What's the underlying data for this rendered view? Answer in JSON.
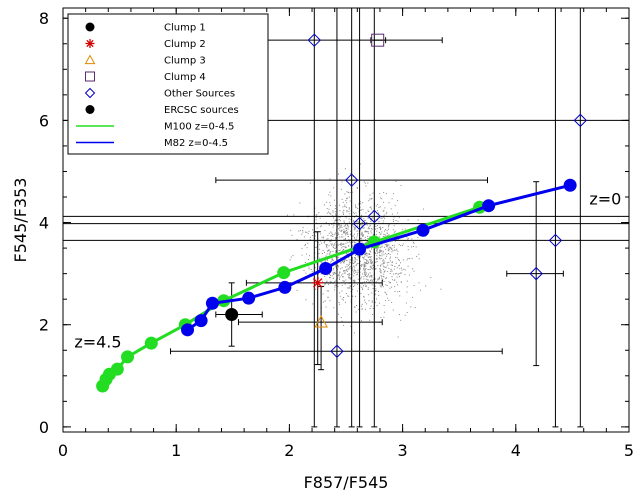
{
  "chart_data": {
    "type": "scatter",
    "xlabel": "F857/F545",
    "ylabel": "F545/F353",
    "xlim": [
      0,
      5
    ],
    "ylim": [
      -0.1,
      8.2
    ],
    "xticks": [
      "0",
      "1",
      "2",
      "3",
      "4",
      "5"
    ],
    "yticks": [
      "0",
      "2",
      "4",
      "6",
      "8"
    ],
    "x_tick_values": [
      0,
      1,
      2,
      3,
      4,
      5
    ],
    "y_tick_values": [
      0,
      2,
      4,
      6,
      8
    ],
    "annotations": [
      {
        "text": "z=0",
        "x": 4.65,
        "y": 4.35
      },
      {
        "text": "z=4.5",
        "x": 0.1,
        "y": 1.55
      }
    ],
    "legend": {
      "placement": "top-left",
      "entries": [
        {
          "label": "Clump 1",
          "marker": "filled-circle",
          "color": "#000000"
        },
        {
          "label": "Clump 2",
          "marker": "asterisk",
          "color": "#d40000"
        },
        {
          "label": "Clump 3",
          "marker": "open-triangle",
          "color": "#e08a00"
        },
        {
          "label": "Clump 4",
          "marker": "open-square",
          "color": "#5a2a6e"
        },
        {
          "label": "Other Sources",
          "marker": "open-diamond",
          "color": "#0000c8"
        },
        {
          "label": "ERCSC sources",
          "marker": "filled-circle",
          "color": "#000000"
        },
        {
          "label": "M100 z=0-4.5",
          "marker": "line",
          "color": "#22dd22"
        },
        {
          "label": "M82 z=0-4.5",
          "marker": "line",
          "color": "#0000ee"
        }
      ]
    },
    "series": [
      {
        "name": "M100 z=0-4.5",
        "style": "line+points",
        "color": "#22dd22",
        "points": [
          [
            0.35,
            0.8
          ],
          [
            0.38,
            0.93
          ],
          [
            0.41,
            1.03
          ],
          [
            0.48,
            1.13
          ],
          [
            0.57,
            1.37
          ],
          [
            0.78,
            1.64
          ],
          [
            1.08,
            2.0
          ],
          [
            1.42,
            2.47
          ],
          [
            1.95,
            3.02
          ],
          [
            2.75,
            3.62
          ],
          [
            3.68,
            4.3
          ]
        ]
      },
      {
        "name": "M82 z=0-4.5",
        "style": "line+points",
        "color": "#0000ee",
        "points": [
          [
            1.1,
            1.9
          ],
          [
            1.22,
            2.08
          ],
          [
            1.32,
            2.42
          ],
          [
            1.64,
            2.52
          ],
          [
            1.96,
            2.73
          ],
          [
            2.32,
            3.1
          ],
          [
            2.62,
            3.48
          ],
          [
            3.18,
            3.85
          ],
          [
            3.76,
            4.33
          ],
          [
            4.48,
            4.73
          ]
        ]
      },
      {
        "name": "Clump 1",
        "style": "marker",
        "marker": "filled-circle",
        "color": "#000000",
        "points": [
          [
            1.49,
            2.2
          ]
        ],
        "xerr": [
          [
            1.35,
            1.76
          ]
        ],
        "yerr": [
          [
            1.58,
            2.82
          ]
        ]
      },
      {
        "name": "Clump 2",
        "style": "marker",
        "marker": "asterisk",
        "color": "#d40000",
        "points": [
          [
            2.25,
            2.82
          ]
        ],
        "xerr": [
          [
            1.62,
            2.82
          ]
        ],
        "yerr": [
          [
            1.22,
            3.82
          ]
        ]
      },
      {
        "name": "Clump 3",
        "style": "marker",
        "marker": "open-triangle",
        "color": "#e08a00",
        "points": [
          [
            2.28,
            2.05
          ]
        ],
        "xerr": [
          [
            1.55,
            2.82
          ]
        ],
        "yerr": [
          [
            1.12,
            2.75
          ]
        ]
      },
      {
        "name": "Clump 4",
        "style": "marker",
        "marker": "open-square",
        "color": "#5a2a6e",
        "points": [
          [
            2.78,
            7.57
          ]
        ],
        "xerr": [
          [
            2.72,
            2.85
          ]
        ]
      },
      {
        "name": "Other Sources",
        "style": "marker",
        "marker": "open-diamond",
        "color": "#0000c8",
        "points": [
          [
            2.22,
            7.57
          ],
          [
            4.57,
            6.0
          ],
          [
            2.55,
            4.83
          ],
          [
            2.75,
            4.12
          ],
          [
            2.62,
            3.98
          ],
          [
            4.18,
            3.0
          ],
          [
            4.35,
            3.65
          ],
          [
            2.42,
            1.48
          ]
        ],
        "xerr": [
          [
            1.58,
            3.35
          ],
          [
            1.75,
            5.0
          ],
          [
            1.35,
            3.75
          ],
          [
            0,
            5.0
          ],
          [
            0,
            5.0
          ],
          [
            3.92,
            4.42
          ],
          [
            0,
            5.0
          ],
          [
            0.95,
            3.88
          ]
        ],
        "yerr": [
          [
            0,
            8.2
          ],
          [
            0,
            8.2
          ],
          [
            0,
            8.2
          ],
          [
            0,
            8.2
          ],
          [
            0,
            8.2
          ],
          [
            1.2,
            4.8
          ],
          [
            0,
            8.2
          ],
          [
            0,
            8.2
          ]
        ]
      }
    ],
    "background_scatter": {
      "color": "#8a8a8a",
      "count": 1500,
      "center": [
        2.62,
        3.45
      ],
      "spread": [
        0.32,
        0.75
      ]
    }
  }
}
